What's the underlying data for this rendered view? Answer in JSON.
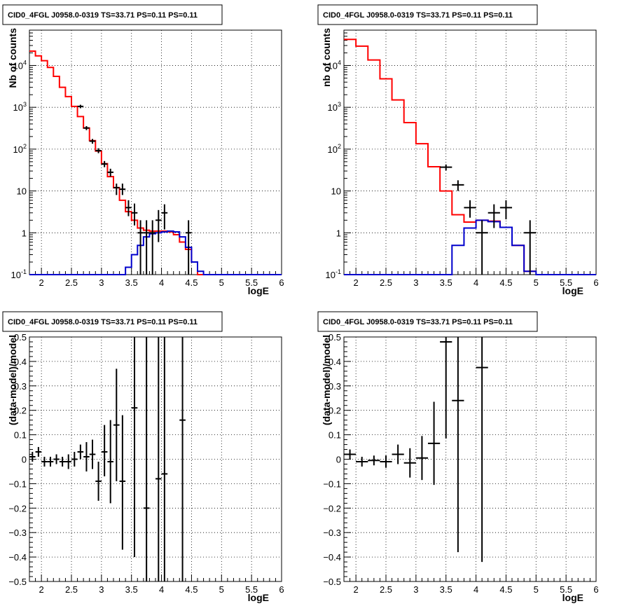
{
  "chart_data": [
    {
      "type": "line",
      "title": "CID0_4FGL J0958.0-0319 TS=33.71 PS=0.11 PS=0.11",
      "xlabel": "logE",
      "ylabel": "Nb of counts",
      "xlim": [
        1.8,
        6.0
      ],
      "ylim": [
        0.1,
        70000
      ],
      "yscale": "log",
      "grid": true,
      "xticks": [
        "2",
        "2.5",
        "3",
        "3.5",
        "4",
        "4.5",
        "5",
        "5.5",
        "6"
      ],
      "yticks": [
        "10^-1",
        "1",
        "10",
        "10^2",
        "10^3",
        "10^4"
      ],
      "series": [
        {
          "style": "step",
          "color": "#ff0000",
          "edges": [
            1.8,
            1.9,
            2.0,
            2.1,
            2.2,
            2.3,
            2.4,
            2.5,
            2.6,
            2.7,
            2.8,
            2.9,
            3.0,
            3.1,
            3.2,
            3.3,
            3.4,
            3.5,
            3.6,
            3.7,
            3.8,
            3.9,
            4.0,
            4.1,
            4.2,
            4.3,
            4.4,
            4.5,
            4.6,
            4.7
          ],
          "values": [
            22000,
            17000,
            13000,
            9000,
            5500,
            3000,
            1800,
            1050,
            600,
            320,
            160,
            90,
            45,
            22,
            12,
            6,
            3.2,
            2,
            1.3,
            1.15,
            1.1,
            1.1,
            1.1,
            1.05,
            0.9,
            0.6,
            0.4,
            0.2,
            0.1
          ]
        },
        {
          "style": "step",
          "color": "#0000cc",
          "edges": [
            1.8,
            3.4,
            3.5,
            3.6,
            3.7,
            3.8,
            3.9,
            4.0,
            4.1,
            4.2,
            4.3,
            4.4,
            4.5,
            4.6,
            4.7,
            6.0
          ],
          "values": [
            0.1,
            0.15,
            0.3,
            0.5,
            0.8,
            0.95,
            1.0,
            1.05,
            1.1,
            1.05,
            0.8,
            0.45,
            0.2,
            0.12,
            0.1
          ]
        },
        {
          "style": "points",
          "color": "#000000",
          "points": [
            {
              "x": 2.65,
              "y": 1050,
              "lo": 950,
              "hi": 1150
            },
            {
              "x": 2.75,
              "y": 320,
              "lo": 285,
              "hi": 355
            },
            {
              "x": 2.85,
              "y": 155,
              "lo": 135,
              "hi": 175
            },
            {
              "x": 2.95,
              "y": 92,
              "lo": 80,
              "hi": 105
            },
            {
              "x": 3.05,
              "y": 44,
              "lo": 37,
              "hi": 52
            },
            {
              "x": 3.15,
              "y": 28,
              "lo": 22,
              "hi": 34
            },
            {
              "x": 3.25,
              "y": 12,
              "lo": 8,
              "hi": 15
            },
            {
              "x": 3.35,
              "y": 11,
              "lo": 8,
              "hi": 15
            },
            {
              "x": 3.45,
              "y": 4,
              "lo": 2.5,
              "hi": 6
            },
            {
              "x": 3.55,
              "y": 3,
              "lo": 1.5,
              "hi": 5
            },
            {
              "x": 3.65,
              "y": 1,
              "lo": 0.1,
              "hi": 2
            },
            {
              "x": 3.75,
              "y": 1,
              "lo": 0.1,
              "hi": 2
            },
            {
              "x": 3.85,
              "y": 1,
              "lo": 0.1,
              "hi": 2
            },
            {
              "x": 3.95,
              "y": 2,
              "lo": 0.6,
              "hi": 3.5
            },
            {
              "x": 4.05,
              "y": 3,
              "lo": 1.2,
              "hi": 4.8
            },
            {
              "x": 4.45,
              "y": 1,
              "lo": 0.1,
              "hi": 2
            }
          ]
        }
      ]
    },
    {
      "type": "line",
      "title": "CID0_4FGL J0958.0-0319 TS=33.71 PS=0.11 PS=0.11",
      "xlabel": "logE",
      "ylabel": "nb of counts",
      "xlim": [
        1.8,
        6.0
      ],
      "ylim": [
        0.1,
        70000
      ],
      "yscale": "log",
      "grid": true,
      "xticks": [
        "2",
        "2.5",
        "3",
        "3.5",
        "4",
        "4.5",
        "5",
        "5.5",
        "6"
      ],
      "yticks": [
        "10^-1",
        "1",
        "10",
        "10^2",
        "10^3",
        "10^4"
      ],
      "series": [
        {
          "style": "step",
          "color": "#ff0000",
          "edges": [
            1.8,
            2.0,
            2.2,
            2.4,
            2.6,
            2.8,
            3.0,
            3.2,
            3.4,
            3.6,
            3.8,
            4.0,
            4.2,
            4.4,
            4.6,
            4.8,
            5.0
          ],
          "values": [
            42000,
            29000,
            13500,
            4800,
            1500,
            430,
            135,
            38,
            10,
            2.7,
            1.8,
            2.0,
            1.9,
            1.35,
            0.5,
            0.12
          ]
        },
        {
          "style": "step",
          "color": "#0000cc",
          "edges": [
            1.8,
            3.4,
            3.6,
            3.8,
            4.0,
            4.2,
            4.4,
            4.6,
            4.8,
            5.0,
            6.0
          ],
          "values": [
            0.1,
            0.1,
            0.5,
            1.3,
            2.0,
            1.85,
            1.35,
            0.5,
            0.12,
            0.1
          ]
        },
        {
          "style": "points",
          "color": "#000000",
          "points": [
            {
              "x": 3.5,
              "y": 37,
              "lo": 31,
              "hi": 43
            },
            {
              "x": 3.7,
              "y": 14,
              "lo": 10,
              "hi": 18
            },
            {
              "x": 3.9,
              "y": 4,
              "lo": 2.3,
              "hi": 6
            },
            {
              "x": 4.1,
              "y": 1,
              "lo": 0.1,
              "hi": 2
            },
            {
              "x": 4.3,
              "y": 3,
              "lo": 1.3,
              "hi": 4.8
            },
            {
              "x": 4.5,
              "y": 4,
              "lo": 2.1,
              "hi": 6
            },
            {
              "x": 4.9,
              "y": 1,
              "lo": 0.1,
              "hi": 2
            }
          ]
        }
      ]
    },
    {
      "type": "scatter",
      "title": "CID0_4FGL J0958.0-0319 TS=33.71 PS=0.11 PS=0.11",
      "xlabel": "logE",
      "ylabel": "(data-model)/model",
      "xlim": [
        1.8,
        6.0
      ],
      "ylim": [
        -0.5,
        0.5
      ],
      "grid": true,
      "xticks": [
        "2",
        "2.5",
        "3",
        "3.5",
        "4",
        "4.5",
        "5",
        "5.5",
        "6"
      ],
      "yticks": [
        "−0.5",
        "−0.4",
        "−0.3",
        "−0.2",
        "−0.1",
        "0",
        "0.1",
        "0.2",
        "0.3",
        "0.4",
        "0.5"
      ],
      "series": [
        {
          "style": "points",
          "color": "#000000",
          "points": [
            {
              "x": 1.85,
              "y": 0.01,
              "lo": -0.01,
              "hi": 0.03
            },
            {
              "x": 1.95,
              "y": 0.03,
              "lo": 0.01,
              "hi": 0.05
            },
            {
              "x": 2.05,
              "y": -0.01,
              "lo": -0.03,
              "hi": 0.01
            },
            {
              "x": 2.15,
              "y": -0.01,
              "lo": -0.03,
              "hi": 0.01
            },
            {
              "x": 2.25,
              "y": 0.0,
              "lo": -0.02,
              "hi": 0.02
            },
            {
              "x": 2.35,
              "y": -0.01,
              "lo": -0.03,
              "hi": 0.01
            },
            {
              "x": 2.45,
              "y": -0.01,
              "lo": -0.04,
              "hi": 0.02
            },
            {
              "x": 2.55,
              "y": 0.0,
              "lo": -0.03,
              "hi": 0.03
            },
            {
              "x": 2.65,
              "y": 0.03,
              "lo": 0.0,
              "hi": 0.06
            },
            {
              "x": 2.75,
              "y": 0.01,
              "lo": -0.05,
              "hi": 0.07
            },
            {
              "x": 2.85,
              "y": 0.02,
              "lo": -0.04,
              "hi": 0.08
            },
            {
              "x": 2.95,
              "y": -0.09,
              "lo": -0.17,
              "hi": -0.01
            },
            {
              "x": 3.05,
              "y": 0.03,
              "lo": -0.07,
              "hi": 0.14
            },
            {
              "x": 3.15,
              "y": -0.01,
              "lo": -0.18,
              "hi": 0.16
            },
            {
              "x": 3.25,
              "y": 0.14,
              "lo": -0.09,
              "hi": 0.37
            },
            {
              "x": 3.35,
              "y": -0.09,
              "lo": -0.37,
              "hi": 0.18
            },
            {
              "x": 3.55,
              "y": 0.21,
              "lo": -0.4,
              "hi": 0.5
            },
            {
              "x": 3.75,
              "y": -0.2,
              "lo": -0.5,
              "hi": 0.5
            },
            {
              "x": 3.95,
              "y": -0.08,
              "lo": -0.5,
              "hi": 0.5
            },
            {
              "x": 4.05,
              "y": -0.06,
              "lo": -0.5,
              "hi": 0.5
            },
            {
              "x": 4.35,
              "y": 0.16,
              "lo": -0.5,
              "hi": 0.5
            }
          ]
        }
      ]
    },
    {
      "type": "scatter",
      "title": "CID0_4FGL J0958.0-0319 TS=33.71 PS=0.11 PS=0.11",
      "xlabel": "logE",
      "ylabel": "(data-model)/model",
      "xlim": [
        1.8,
        6.0
      ],
      "ylim": [
        -0.5,
        0.5
      ],
      "grid": true,
      "xticks": [
        "2",
        "2.5",
        "3",
        "3.5",
        "4",
        "4.5",
        "5",
        "5.5",
        "6"
      ],
      "yticks": [
        "−0.5",
        "−0.4",
        "−0.3",
        "−0.2",
        "−0.1",
        "0",
        "0.1",
        "0.2",
        "0.3",
        "0.4",
        "0.5"
      ],
      "series": [
        {
          "style": "points",
          "color": "#000000",
          "points": [
            {
              "x": 1.9,
              "y": 0.02,
              "lo": 0.0,
              "hi": 0.04
            },
            {
              "x": 2.1,
              "y": -0.01,
              "lo": -0.03,
              "hi": 0.01
            },
            {
              "x": 2.3,
              "y": -0.005,
              "lo": -0.025,
              "hi": 0.015
            },
            {
              "x": 2.5,
              "y": -0.01,
              "lo": -0.035,
              "hi": 0.015
            },
            {
              "x": 2.7,
              "y": 0.02,
              "lo": -0.02,
              "hi": 0.06
            },
            {
              "x": 2.9,
              "y": -0.015,
              "lo": -0.075,
              "hi": 0.045
            },
            {
              "x": 3.1,
              "y": 0.005,
              "lo": -0.085,
              "hi": 0.095
            },
            {
              "x": 3.3,
              "y": 0.065,
              "lo": -0.105,
              "hi": 0.235
            },
            {
              "x": 3.5,
              "y": 0.48,
              "lo": 0.085,
              "hi": 0.5
            },
            {
              "x": 3.7,
              "y": 0.24,
              "lo": -0.38,
              "hi": 0.5
            },
            {
              "x": 4.1,
              "y": 0.375,
              "lo": -0.42,
              "hi": 0.5
            }
          ]
        }
      ]
    }
  ]
}
